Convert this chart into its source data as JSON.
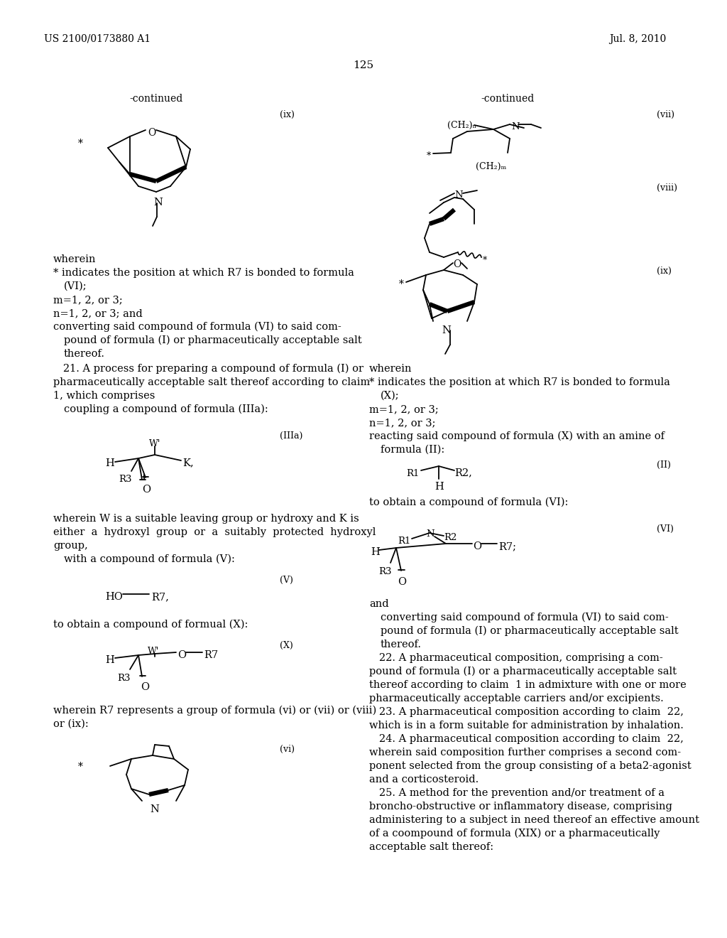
{
  "background_color": "#ffffff",
  "header_left": "US 2100/0173880 A1",
  "header_right": "Jul. 8, 2010",
  "page_number": "125"
}
